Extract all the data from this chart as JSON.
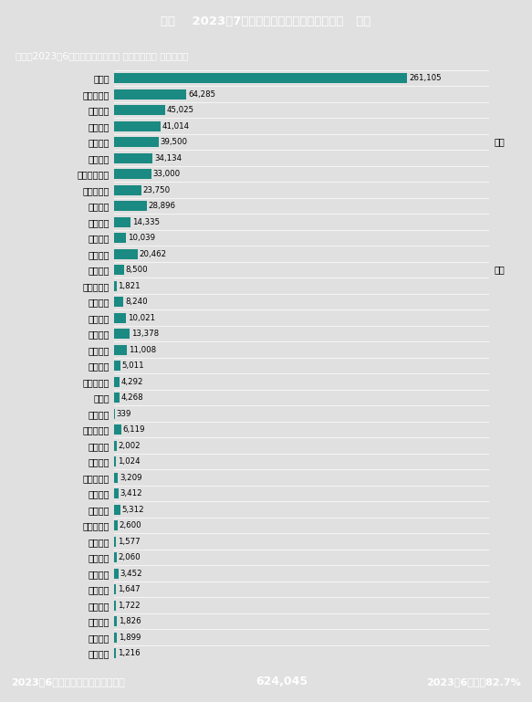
{
  "title_header": "企业    2023年7月新能源乘用车批发销量（辆）   备注",
  "subtitle": "注：按2023年6月乘联会批发量排序 含乘联会预估 非最终排名",
  "footer_left": "2023年6月万辆以上企业本月合计：",
  "footer_mid": "624,045",
  "footer_right": "2023年6月占比82.7%",
  "header_bg": "#1a7a74",
  "footer_bg": "#1a7a74",
  "chart_bg": "#e0e0e0",
  "bar_color": "#1a8a82",
  "companies": [
    "比亚迪",
    "特斯拉中国",
    "广汽埃安",
    "吉利汽车",
    "长安汽车",
    "理想汽车",
    "上汽通用五较",
    "上汽乘用车",
    "长城汽车",
    "零跳汽车",
    "哪吒汽车",
    "蔀来汽车",
    "奇瑞汽车",
    "北汽乘用车",
    "一汽大众",
    "上汽通用",
    "上汽大众",
    "小鹏汽车",
    "一汽红旗",
    "智马达汽车",
    "赛力斯",
    "一汽轿车",
    "东风易捷特",
    "东风纳米",
    "一汽丰田",
    "东风乘用车",
    "岚图汽车",
    "东风日产",
    "广汽乘用车",
    "广汽本田",
    "飞凡汽车",
    "创维汽车",
    "合创汽车",
    "智己汽车",
    "极狐汽车",
    "东风本田",
    "神龙汽车"
  ],
  "values": [
    261105,
    64285,
    45025,
    41014,
    39500,
    34134,
    33000,
    23750,
    28896,
    14335,
    10039,
    20462,
    8500,
    1821,
    8240,
    10021,
    13378,
    11008,
    5011,
    4292,
    4268,
    339,
    6119,
    2002,
    1024,
    3209,
    3412,
    5312,
    2600,
    1577,
    2060,
    3452,
    1647,
    1722,
    1826,
    1899,
    1216
  ],
  "note_indices": [
    4,
    12
  ],
  "note_text": "预估"
}
